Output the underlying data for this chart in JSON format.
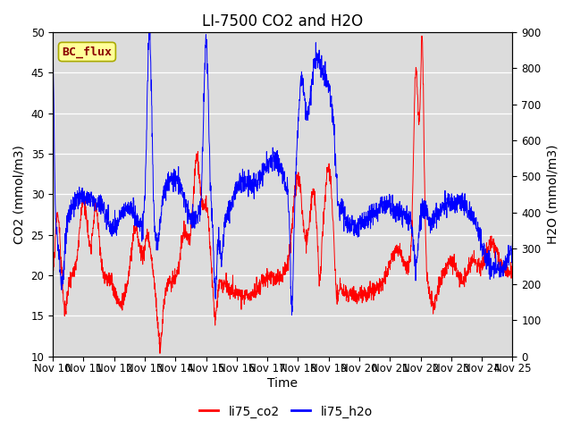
{
  "title": "LI-7500 CO2 and H2O",
  "xlabel": "Time",
  "ylabel_left": "CO2 (mmol/m3)",
  "ylabel_right": "H2O (mmol/m3)",
  "annotation_text": "BC_flux",
  "annotation_text_color": "#8B0000",
  "annotation_bg_color": "#FFFF99",
  "annotation_edge_color": "#AAAA00",
  "ylim_left": [
    10,
    50
  ],
  "ylim_right": [
    0,
    900
  ],
  "yticks_left": [
    10,
    15,
    20,
    25,
    30,
    35,
    40,
    45,
    50
  ],
  "yticks_right": [
    0,
    100,
    200,
    300,
    400,
    500,
    600,
    700,
    800,
    900
  ],
  "xticklabels": [
    "Nov 10",
    "Nov 11",
    "Nov 12",
    "Nov 13",
    "Nov 14",
    "Nov 15",
    "Nov 16",
    "Nov 17",
    "Nov 18",
    "Nov 19",
    "Nov 20",
    "Nov 21",
    "Nov 22",
    "Nov 23",
    "Nov 24",
    "Nov 25"
  ],
  "legend_labels": [
    "li75_co2",
    "li75_h2o"
  ],
  "legend_colors": [
    "red",
    "blue"
  ],
  "line_co2_color": "red",
  "line_h2o_color": "blue",
  "bg_color": "#DCDCDC",
  "title_fontsize": 12,
  "axis_fontsize": 10,
  "tick_fontsize": 8.5,
  "legend_fontsize": 10
}
